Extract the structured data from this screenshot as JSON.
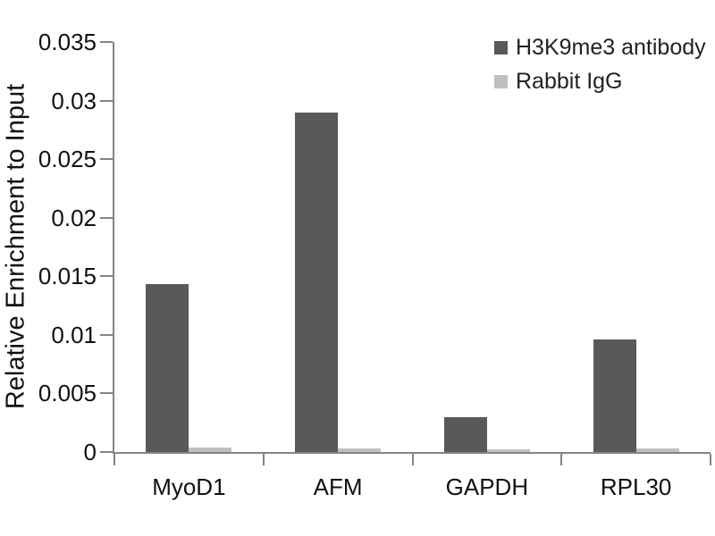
{
  "chart_data": {
    "type": "bar",
    "title": "",
    "xlabel": "",
    "ylabel": "Relative Enrichment to Input",
    "categories": [
      "MyoD1",
      "AFM",
      "GAPDH",
      "RPL30"
    ],
    "series": [
      {
        "name": "H3K9me3 antibody",
        "color": "#595959",
        "values": [
          0.0143,
          0.029,
          0.003,
          0.0096
        ]
      },
      {
        "name": "Rabbit IgG",
        "color": "#bfbfbf",
        "values": [
          0.0004,
          0.0003,
          0.0002,
          0.0003
        ]
      }
    ],
    "ylim": [
      0,
      0.035
    ],
    "ytick_step": 0.005,
    "ytick_labels": [
      "0",
      "0.005",
      "0.01",
      "0.015",
      "0.02",
      "0.025",
      "0.03",
      "0.035"
    ],
    "legend_position": "top-right",
    "grid": false
  },
  "colors": {
    "axis": "#848484",
    "text": "#111111",
    "background": "#ffffff"
  }
}
